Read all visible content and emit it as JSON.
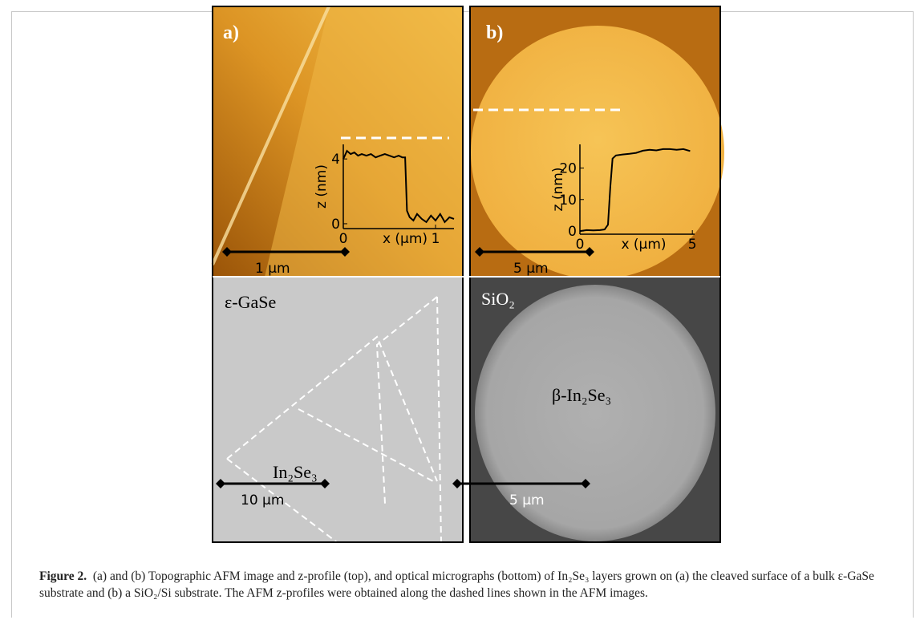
{
  "figure": {
    "panels": [
      {
        "label": "a)",
        "scale_bar": "1 μm",
        "inset": {
          "type": "line",
          "ylabel": "z (nm)",
          "xlabel": "x (μm)",
          "x": [
            0,
            0.04,
            0.08,
            0.12,
            0.16,
            0.2,
            0.25,
            0.3,
            0.35,
            0.4,
            0.45,
            0.5,
            0.55,
            0.6,
            0.64,
            0.67,
            0.69,
            0.72,
            0.76,
            0.8,
            0.85,
            0.9,
            0.95,
            1.0,
            1.05,
            1.1,
            1.15,
            1.2
          ],
          "values": [
            4.0,
            4.5,
            4.3,
            4.4,
            4.2,
            4.3,
            4.2,
            4.3,
            4.1,
            4.2,
            4.3,
            4.2,
            4.1,
            4.2,
            4.1,
            4.1,
            0.8,
            0.4,
            0.2,
            0.6,
            0.3,
            0.1,
            0.5,
            0.2,
            0.6,
            0.1,
            0.4,
            0.3
          ],
          "color": "#000000",
          "xlim": [
            0,
            1.2
          ],
          "ylim": [
            -0.3,
            4.9
          ],
          "xticks": [
            0,
            1
          ],
          "yticks": [
            0,
            4
          ]
        },
        "micrograph": {
          "substrate": "ε-GaSe",
          "layer": "In₂Se₃",
          "scale_bar": "10 μm"
        }
      },
      {
        "label": "b)",
        "scale_bar": "5 μm",
        "inset": {
          "type": "line",
          "ylabel": "z (nm)",
          "xlabel": "x (μm)",
          "x": [
            0,
            0.3,
            0.6,
            0.9,
            1.1,
            1.25,
            1.35,
            1.45,
            1.6,
            1.9,
            2.2,
            2.5,
            2.8,
            3.1,
            3.4,
            3.7,
            4.0,
            4.3,
            4.6,
            4.9
          ],
          "values": [
            0,
            0.3,
            0.2,
            0.3,
            0.5,
            2,
            14,
            23,
            24,
            24.3,
            24.5,
            24.8,
            25.5,
            25.8,
            25.6,
            26,
            26,
            25.8,
            26,
            25.4
          ],
          "color": "#000000",
          "xlim": [
            0,
            5.1
          ],
          "ylim": [
            -1,
            27.5
          ],
          "xticks": [
            0,
            5
          ],
          "yticks": [
            0,
            10,
            20
          ]
        },
        "micrograph": {
          "substrate": "SiO₂",
          "layer": "β-In₂Se₃",
          "scale_bar": "5 μm"
        }
      }
    ],
    "caption": {
      "label": "Figure 2.",
      "text": "(a) and (b) Topographic AFM image and z-profile (top), and optical micrographs (bottom) of In₂Se₃ layers grown on (a) the cleaved surface of a bulk ε-GaSe substrate and (b) a SiO₂/Si substrate. The AFM z-profiles were obtained along the dashed lines shown in the AFM images."
    }
  }
}
